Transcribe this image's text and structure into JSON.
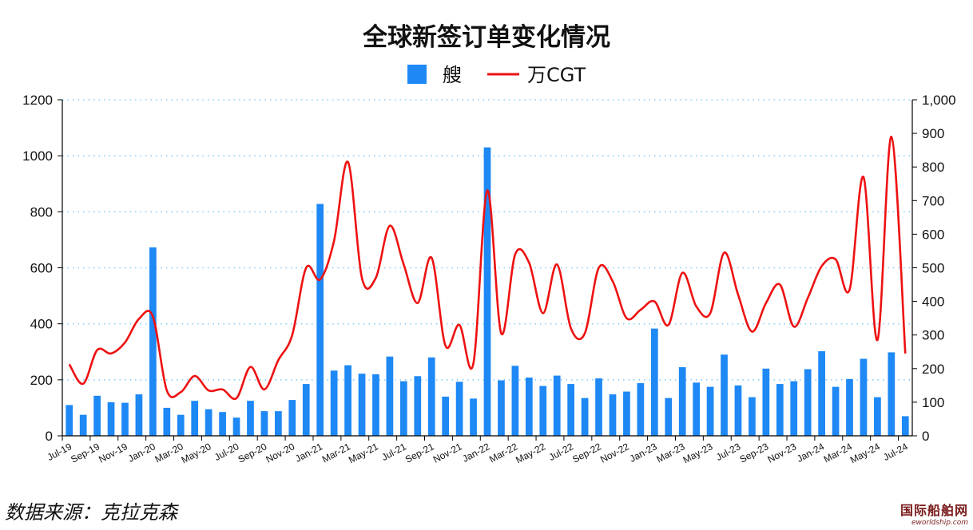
{
  "colors": {
    "bars": "#1E88F5",
    "line": "#EE1111",
    "grid": "#87CEFA"
  },
  "source": "数据来源：克拉克森",
  "watermark": {
    "main": "国际船舶网",
    "sub": "eworldship.com"
  },
  "chart_data": {
    "type": "bar",
    "title": "全球新签订单变化情况",
    "legend": {
      "position": "top-center",
      "entries": [
        "艘",
        "万CGT"
      ]
    },
    "grid": {
      "horizontal": true,
      "style": "dotted"
    },
    "x_tick_labels": [
      "Jul-19",
      "Sep-19",
      "Nov-19",
      "Jan-20",
      "Mar-20",
      "May-20",
      "Jul-20",
      "Sep-20",
      "Nov-20",
      "Jan-21",
      "Mar-21",
      "May-21",
      "Jul-21",
      "Sep-21",
      "Nov-21",
      "Jan-22",
      "Mar-22",
      "May-22",
      "Jul-22",
      "Sep-22",
      "Nov-22",
      "Jan-23",
      "Mar-23",
      "May-23",
      "Jul-23",
      "Sep-23",
      "Nov-23",
      "Jan-24",
      "Mar-24",
      "May-24",
      "Jul-24"
    ],
    "categories": [
      "Jul-19",
      "Aug-19",
      "Sep-19",
      "Oct-19",
      "Nov-19",
      "Dec-19",
      "Jan-20",
      "Feb-20",
      "Mar-20",
      "Apr-20",
      "May-20",
      "Jun-20",
      "Jul-20",
      "Aug-20",
      "Sep-20",
      "Oct-20",
      "Nov-20",
      "Dec-20",
      "Jan-21",
      "Feb-21",
      "Mar-21",
      "Apr-21",
      "May-21",
      "Jun-21",
      "Jul-21",
      "Aug-21",
      "Sep-21",
      "Oct-21",
      "Nov-21",
      "Dec-21",
      "Jan-22",
      "Feb-22",
      "Mar-22",
      "Apr-22",
      "May-22",
      "Jun-22",
      "Jul-22",
      "Aug-22",
      "Sep-22",
      "Oct-22",
      "Nov-22",
      "Dec-22",
      "Jan-23",
      "Feb-23",
      "Mar-23",
      "Apr-23",
      "May-23",
      "Jun-23",
      "Jul-23",
      "Aug-23",
      "Sep-23",
      "Oct-23",
      "Nov-23",
      "Dec-23",
      "Jan-24",
      "Feb-24",
      "Mar-24",
      "Apr-24",
      "May-24",
      "Jun-24",
      "Jul-24"
    ],
    "series": [
      {
        "name": "艘",
        "type": "bar",
        "axis": "left",
        "values": [
          110,
          75,
          143,
          120,
          118,
          148,
          673,
          100,
          75,
          125,
          95,
          85,
          65,
          125,
          88,
          88,
          128,
          185,
          828,
          233,
          252,
          222,
          220,
          283,
          195,
          213,
          280,
          140,
          193,
          133,
          1030,
          198,
          250,
          208,
          178,
          215,
          185,
          135,
          205,
          148,
          158,
          188,
          383,
          135,
          245,
          190,
          175,
          290,
          180,
          138,
          240,
          185,
          195,
          238,
          302,
          175,
          203,
          275,
          138,
          298,
          70
        ]
      },
      {
        "name": "万CGT",
        "type": "line",
        "axis": "right",
        "values": [
          213,
          155,
          255,
          245,
          278,
          348,
          355,
          135,
          130,
          178,
          135,
          138,
          112,
          205,
          138,
          225,
          300,
          500,
          465,
          580,
          815,
          470,
          470,
          625,
          510,
          395,
          530,
          268,
          330,
          215,
          730,
          305,
          540,
          515,
          365,
          510,
          320,
          305,
          500,
          460,
          350,
          375,
          400,
          330,
          485,
          385,
          365,
          545,
          420,
          310,
          395,
          450,
          325,
          410,
          505,
          525,
          435,
          770,
          285,
          890,
          245
        ]
      }
    ],
    "y_left": {
      "min": 0,
      "max": 1200,
      "ticks": [
        "0",
        "200",
        "400",
        "600",
        "800",
        "1000",
        "1200"
      ]
    },
    "y_right": {
      "min": 0,
      "max": 1000,
      "ticks": [
        "0",
        "100",
        "200",
        "300",
        "400",
        "500",
        "600",
        "700",
        "800",
        "900",
        "1,000"
      ]
    }
  }
}
